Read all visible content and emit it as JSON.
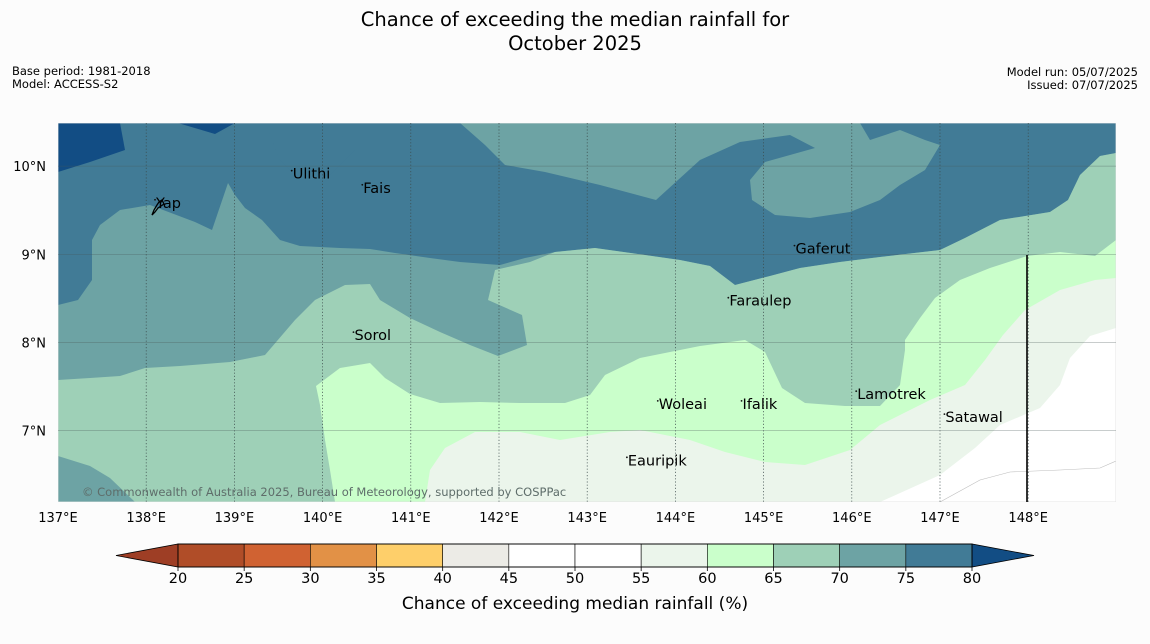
{
  "title_line1": "Chance of exceeding the median rainfall for",
  "title_line2": "October 2025",
  "base_period": "Base period: 1981-2018",
  "model": "Model: ACCESS-S2",
  "model_run": "Model run: 05/07/2025",
  "issued": "Issued: 07/07/2025",
  "copyright": "© Commonwealth of Australia 2025, Bureau of Meteorology, supported by COSPPac",
  "legend_title": "Chance of exceeding median rainfall (%)",
  "map": {
    "lon_range": [
      137,
      149
    ],
    "lat_range": [
      6.2,
      10.5
    ],
    "lon_ticks": [
      {
        "value": 137,
        "label": "137°E"
      },
      {
        "value": 138,
        "label": "138°E"
      },
      {
        "value": 139,
        "label": "139°E"
      },
      {
        "value": 140,
        "label": "140°E"
      },
      {
        "value": 141,
        "label": "141°E"
      },
      {
        "value": 142,
        "label": "142°E"
      },
      {
        "value": 143,
        "label": "143°E"
      },
      {
        "value": 144,
        "label": "144°E"
      },
      {
        "value": 145,
        "label": "145°E"
      },
      {
        "value": 146,
        "label": "146°E"
      },
      {
        "value": 147,
        "label": "147°E"
      },
      {
        "value": 148,
        "label": "148°E"
      }
    ],
    "lat_ticks": [
      {
        "value": 10,
        "label": "10°N"
      },
      {
        "value": 9,
        "label": "9°N"
      },
      {
        "value": 8,
        "label": "8°N"
      },
      {
        "value": 7,
        "label": "7°N"
      }
    ],
    "places": [
      {
        "name": "Yap",
        "lon": 138.1,
        "lat": 9.55
      },
      {
        "name": "Ulithi",
        "lon": 139.65,
        "lat": 9.88
      },
      {
        "name": "Fais",
        "lon": 140.45,
        "lat": 9.72
      },
      {
        "name": "Gaferut",
        "lon": 145.35,
        "lat": 9.03
      },
      {
        "name": "Faraulep",
        "lon": 144.6,
        "lat": 8.44
      },
      {
        "name": "Sorol",
        "lon": 140.35,
        "lat": 8.05
      },
      {
        "name": "Lamotrek",
        "lon": 146.05,
        "lat": 7.38
      },
      {
        "name": "Woleai",
        "lon": 143.8,
        "lat": 7.27
      },
      {
        "name": "Ifalik",
        "lon": 144.75,
        "lat": 7.27
      },
      {
        "name": "Satawal",
        "lon": 147.05,
        "lat": 7.12
      },
      {
        "name": "Eauripik",
        "lon": 143.45,
        "lat": 6.63
      }
    ]
  },
  "legend": {
    "bins": [
      {
        "from": 20,
        "to": 25,
        "color": "#b04d28"
      },
      {
        "from": 25,
        "to": 30,
        "color": "#d06232"
      },
      {
        "from": 30,
        "to": 35,
        "color": "#e29146"
      },
      {
        "from": 35,
        "to": 40,
        "color": "#fecf6a"
      },
      {
        "from": 40,
        "to": 45,
        "color": "#ecebe6"
      },
      {
        "from": 45,
        "to": 50,
        "color": "#ffffff"
      },
      {
        "from": 50,
        "to": 55,
        "color": "#ffffff"
      },
      {
        "from": 55,
        "to": 60,
        "color": "#ebf5eb"
      },
      {
        "from": 60,
        "to": 65,
        "color": "#caffcb"
      },
      {
        "from": 65,
        "to": 70,
        "color": "#9ed0b7"
      },
      {
        "from": 70,
        "to": 75,
        "color": "#6da3a4"
      },
      {
        "from": 75,
        "to": 80,
        "color": "#417b96"
      }
    ],
    "under_color": "#9e3e25",
    "over_color": "#124d84",
    "ticks": [
      "20",
      "25",
      "30",
      "35",
      "40",
      "45",
      "50",
      "55",
      "60",
      "65",
      "70",
      "75",
      "80"
    ]
  }
}
